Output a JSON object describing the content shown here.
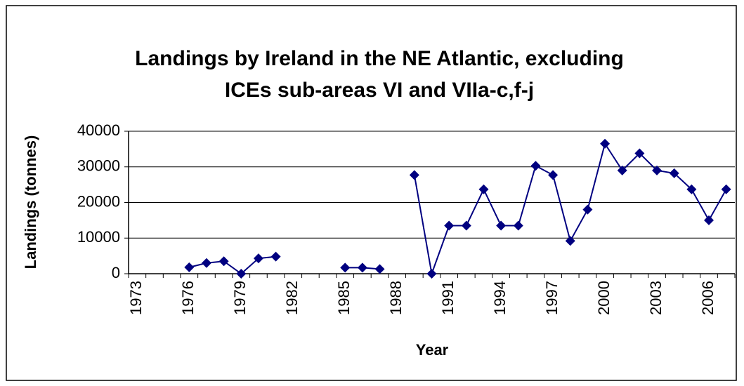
{
  "chart_data": {
    "type": "line",
    "title": [
      "Landings by Ireland in the NE Atlantic, excluding",
      "ICEs sub-areas VI and VIIa-c,f-j"
    ],
    "x_label": "Year",
    "y_label": "Landings (tonnes)",
    "categories": [
      "1973",
      null,
      null,
      "1976",
      null,
      null,
      "1979",
      null,
      null,
      "1982",
      null,
      null,
      "1985",
      null,
      null,
      "1988",
      null,
      null,
      "1991",
      null,
      null,
      "1994",
      null,
      null,
      "1997",
      null,
      null,
      "2000",
      null,
      null,
      "2003",
      null,
      null,
      "2006",
      null
    ],
    "series": [
      {
        "name": "Landings",
        "color": "#000080",
        "values": [
          null,
          null,
          null,
          1800,
          3000,
          3500,
          0,
          4300,
          4800,
          null,
          null,
          null,
          1700,
          1700,
          1300,
          null,
          27700,
          0,
          13500,
          13500,
          23700,
          13500,
          13500,
          30300,
          27700,
          9200,
          18000,
          36500,
          29000,
          33800,
          29000,
          28200,
          23700,
          15000,
          23700
        ]
      }
    ],
    "ylim": [
      0,
      40000
    ],
    "yticks": [
      0,
      10000,
      20000,
      30000,
      40000
    ],
    "grid": true
  }
}
